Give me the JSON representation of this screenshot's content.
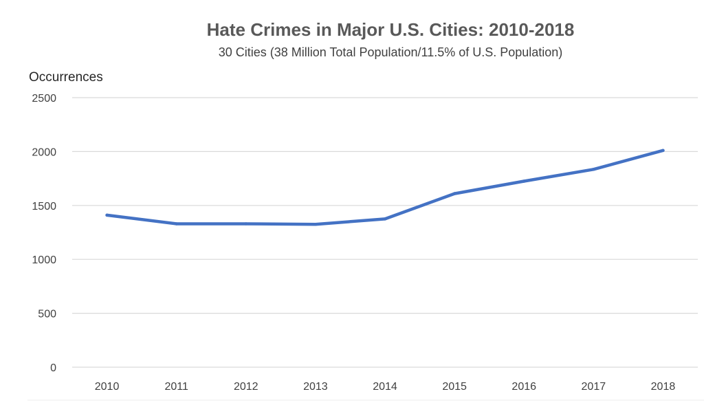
{
  "chart_data": {
    "type": "line",
    "title": "Hate Crimes in Major U.S. Cities: 2010-2018",
    "subtitle": "30 Cities (38 Million Total Population/11.5% of U.S. Population)",
    "xlabel": "",
    "ylabel": "Occurrences",
    "categories": [
      "2010",
      "2011",
      "2012",
      "2013",
      "2014",
      "2015",
      "2016",
      "2017",
      "2018"
    ],
    "series": [
      {
        "color": "#4472c4",
        "values": [
          1410,
          1330,
          1330,
          1325,
          1375,
          1610,
          1725,
          1835,
          2010
        ]
      }
    ],
    "ylim": [
      0,
      2500
    ],
    "yticks": [
      0,
      500,
      1000,
      1500,
      2000,
      2500
    ],
    "grid": true,
    "legend": "none"
  }
}
